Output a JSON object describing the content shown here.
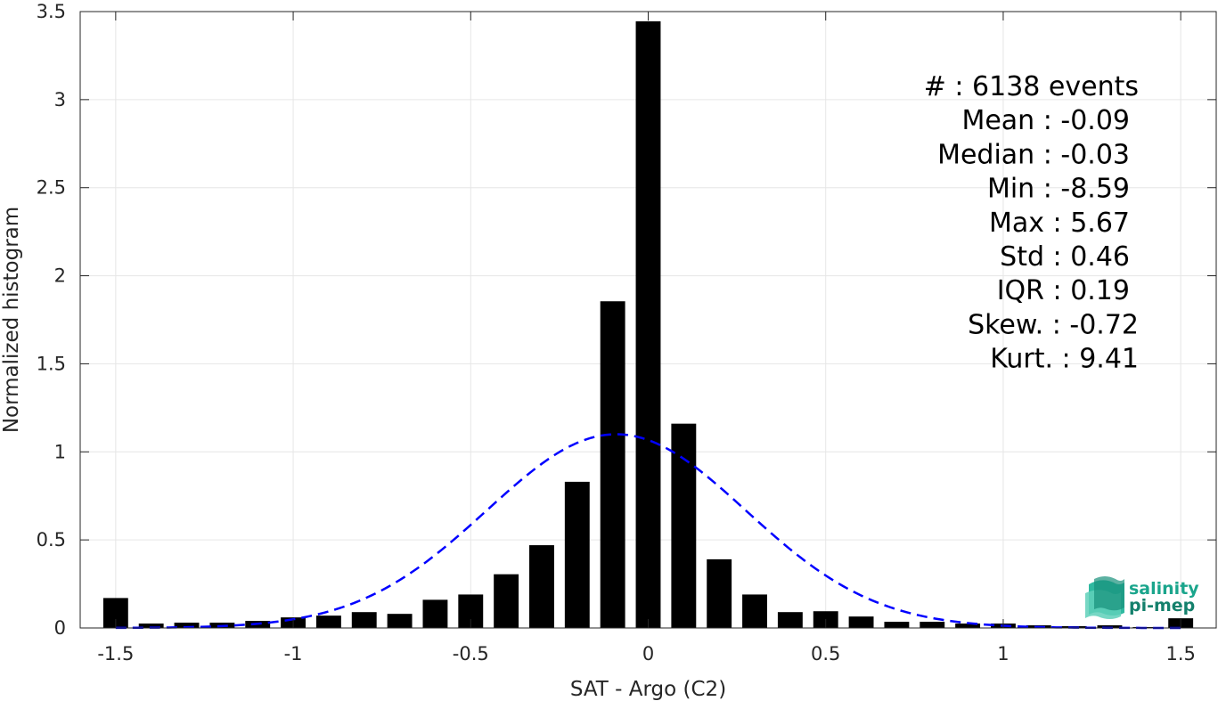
{
  "chart_data": {
    "type": "bar",
    "xlabel": "SAT - Argo (C2)",
    "ylabel": "Normalized histogram",
    "xlim": [
      -1.6,
      1.6
    ],
    "ylim": [
      0,
      3.5
    ],
    "grid": true,
    "x_ticks": [
      -1.5,
      -1,
      -0.5,
      0,
      0.5,
      1,
      1.5
    ],
    "x_tick_labels": [
      "-1.5",
      "-1",
      "-0.5",
      "0",
      "0.5",
      "1",
      "1.5"
    ],
    "y_ticks": [
      0,
      0.5,
      1,
      1.5,
      2,
      2.5,
      3,
      3.5
    ],
    "y_tick_labels": [
      "0",
      "0.5",
      "1",
      "1.5",
      "2",
      "2.5",
      "3",
      "3.5"
    ],
    "bar_width": 0.07,
    "bar_color": "#000000",
    "bins": [
      -1.5,
      -1.4,
      -1.3,
      -1.2,
      -1.1,
      -1.0,
      -0.9,
      -0.8,
      -0.7,
      -0.6,
      -0.5,
      -0.4,
      -0.3,
      -0.2,
      -0.1,
      0.0,
      0.1,
      0.2,
      0.3,
      0.4,
      0.5,
      0.6,
      0.7,
      0.8,
      0.9,
      1.0,
      1.1,
      1.2,
      1.3,
      1.4,
      1.5
    ],
    "values": [
      0.17,
      0.025,
      0.03,
      0.03,
      0.04,
      0.06,
      0.07,
      0.09,
      0.08,
      0.16,
      0.19,
      0.305,
      0.47,
      0.83,
      1.855,
      3.445,
      1.16,
      0.39,
      0.19,
      0.09,
      0.095,
      0.065,
      0.035,
      0.035,
      0.025,
      0.025,
      0.015,
      0.01,
      0.015,
      0.005,
      0.055
    ],
    "fit_curve": {
      "type": "gaussian",
      "color": "#0000ff",
      "style": "dashed",
      "mean": -0.09,
      "std": 0.365,
      "peak": 1.1
    },
    "annotations": [
      "#  : 6138 events",
      "Mean : -0.09",
      "Median : -0.03",
      "Min : -8.59",
      "Max : 5.67",
      "Std : 0.46",
      "IQR : 0.19",
      "Skew. : -0.72",
      "Kurt. : 9.41"
    ]
  },
  "logo": {
    "line1": "salinity",
    "line2": "pi-mep",
    "color": "#1aa58c"
  }
}
